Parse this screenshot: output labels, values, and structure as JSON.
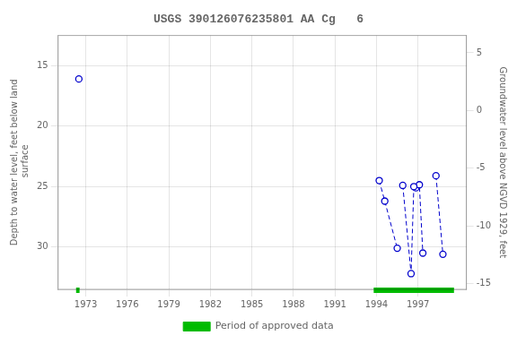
{
  "chart_data": {
    "type": "scatter",
    "title": "USGS 390126076235801 AA Cg   6",
    "ylabel": "Depth to water level, feet below land\n surface",
    "y2label": "Groundwater level above NGVD 1929, feet",
    "xlim": [
      1971.0,
      2000.5
    ],
    "xticks": [
      1973,
      1976,
      1979,
      1982,
      1985,
      1988,
      1991,
      1994,
      1997
    ],
    "ylim": [
      33.5,
      12.5
    ],
    "yticks": [
      15,
      20,
      25,
      30
    ],
    "y2lim": [
      -15.5,
      6.5
    ],
    "y2ticks": [
      5,
      0,
      -5,
      -10,
      -15
    ],
    "grid": true,
    "legend": "bottom",
    "series": [
      {
        "x": [
          1972.5
        ],
        "values": [
          16.1
        ],
        "color": "#0000cc",
        "marker": "open_circle",
        "line_style": "none"
      },
      {
        "x": [
          1994.2,
          1994.6,
          1995.5
        ],
        "values": [
          24.5,
          26.2,
          30.1
        ],
        "color": "#0000cc",
        "marker": "open_circle",
        "line_style": "dashed"
      },
      {
        "x": [
          1995.9,
          1996.5,
          1996.7
        ],
        "values": [
          24.9,
          32.2,
          25.0
        ],
        "color": "#0000cc",
        "marker": "open_circle",
        "line_style": "dashed"
      },
      {
        "x": [
          1996.85,
          1997.1,
          1997.35
        ],
        "values": [
          25.1,
          24.85,
          30.5
        ],
        "color": "#0000cc",
        "marker": "open_circle",
        "line_style": "dashed"
      },
      {
        "x": [
          1998.3,
          1998.8
        ],
        "values": [
          24.1,
          30.6
        ],
        "color": "#0000cc",
        "marker": "open_circle",
        "line_style": "dashed"
      },
      {
        "name": "Period of approved data",
        "type": "span",
        "color": "#00bb00",
        "spans": [
          [
            1972.3,
            1972.55
          ],
          [
            1993.8,
            1999.6
          ]
        ]
      }
    ]
  }
}
